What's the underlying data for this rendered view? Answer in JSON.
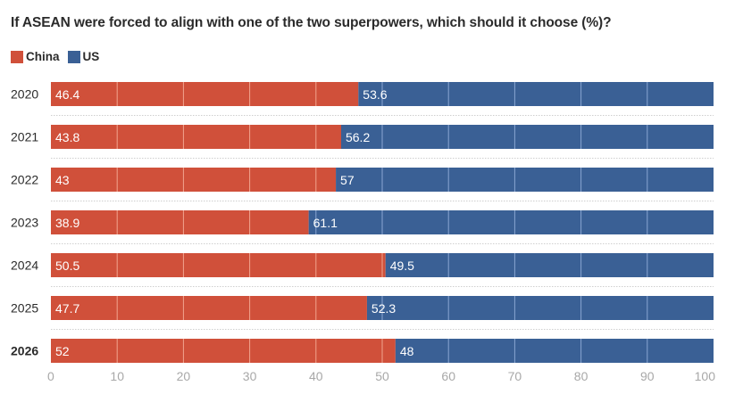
{
  "colors": {
    "china": "#d0503a",
    "us": "#3a6095",
    "china_grid": "#f1a48e",
    "us_grid": "#89a6d2",
    "separator": "#cfcfcf",
    "tick": "#a8a8a8",
    "year": "#2b2b2b"
  },
  "chart_data": {
    "type": "bar",
    "orientation": "horizontal",
    "stacked": true,
    "title": "If ASEAN were forced to align with one of the two superpowers, which should it choose (%)?",
    "legend": {
      "position": "top-left",
      "entries": [
        "China",
        "US"
      ]
    },
    "categories": [
      "2020",
      "2021",
      "2022",
      "2023",
      "2024",
      "2025",
      "2026"
    ],
    "highlighted_category": "2026",
    "series": [
      {
        "name": "China",
        "values": [
          46.4,
          43.8,
          43,
          38.9,
          50.5,
          47.7,
          52
        ],
        "labels": [
          "46.4",
          "43.8",
          "43",
          "38.9",
          "50.5",
          "47.7",
          "52"
        ]
      },
      {
        "name": "US",
        "values": [
          53.6,
          56.2,
          57,
          61.1,
          49.5,
          52.3,
          48
        ],
        "labels": [
          "53.6",
          "56.2",
          "57",
          "61.1",
          "49.5",
          "52.3",
          "48"
        ]
      }
    ],
    "xlim": [
      0,
      100
    ],
    "xticks": [
      0,
      10,
      20,
      30,
      40,
      50,
      60,
      70,
      80,
      90,
      100
    ],
    "xtick_labels": [
      "0",
      "10",
      "20",
      "30",
      "40",
      "50",
      "60",
      "70",
      "80",
      "90",
      "100"
    ],
    "xlabel": "",
    "ylabel": "",
    "grid": true
  }
}
